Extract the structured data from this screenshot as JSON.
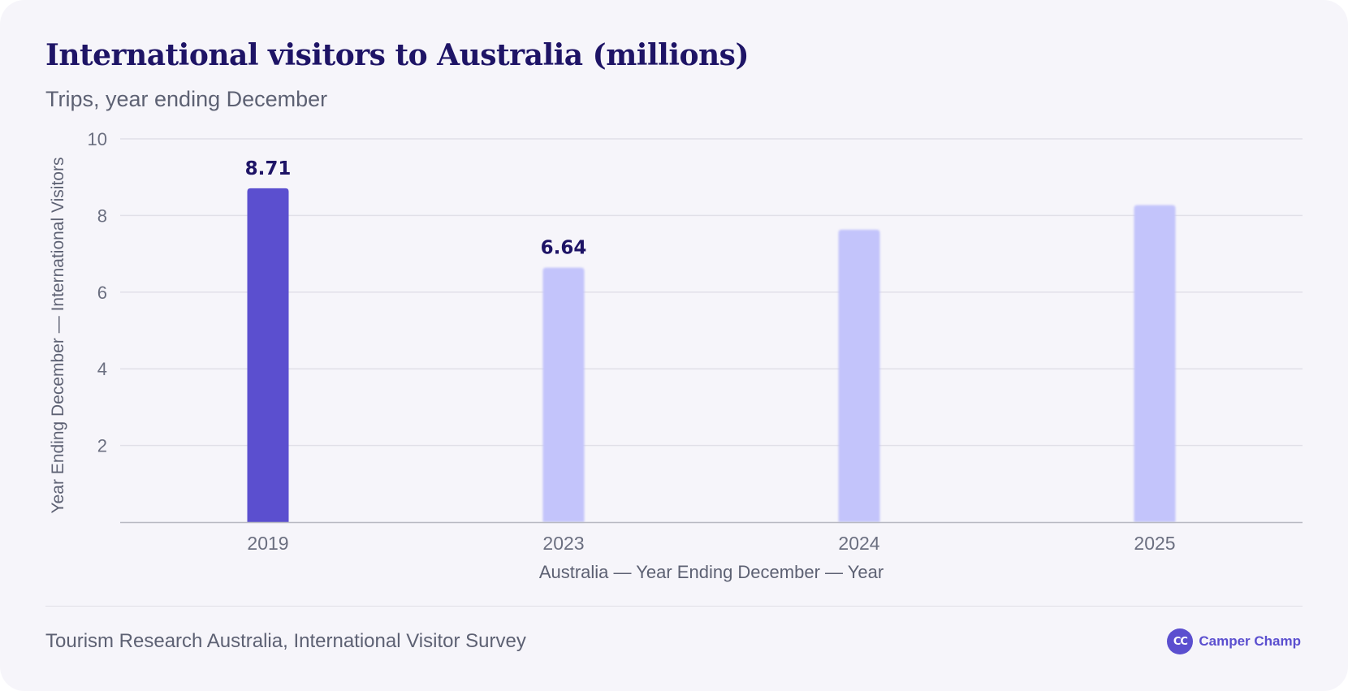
{
  "header": {
    "title": "International visitors to Australia (millions)",
    "subtitle": "Trips, year ending December"
  },
  "footer": {
    "source": "Tourism Research Australia, International Visitor Survey",
    "brand_name": "Camper Champ",
    "brand_logo_text": "CC"
  },
  "colors": {
    "highlight_bar": "#5b4fcf",
    "other_bars": "#c3c4fb",
    "value_label": "#1e1466",
    "brand": "#5b4fcf"
  },
  "chart_data": {
    "type": "bar",
    "title": "International visitors to Australia (millions)",
    "subtitle": "Trips, year ending December",
    "categories": [
      "2019",
      "2023",
      "2024",
      "2025"
    ],
    "series": [
      {
        "values": [
          8.71,
          6.64,
          7.63,
          8.27
        ]
      }
    ],
    "data_labels": [
      "8.71",
      "6.64",
      "",
      ""
    ],
    "highlighted_category": "2019",
    "xlabel": "Australia — Year Ending December — Year",
    "ylabel": "Year Ending December — International Visitors",
    "ylim": [
      0,
      10
    ],
    "yticks": [
      2,
      4,
      6,
      8,
      10
    ],
    "grid": true,
    "legend": "none"
  }
}
